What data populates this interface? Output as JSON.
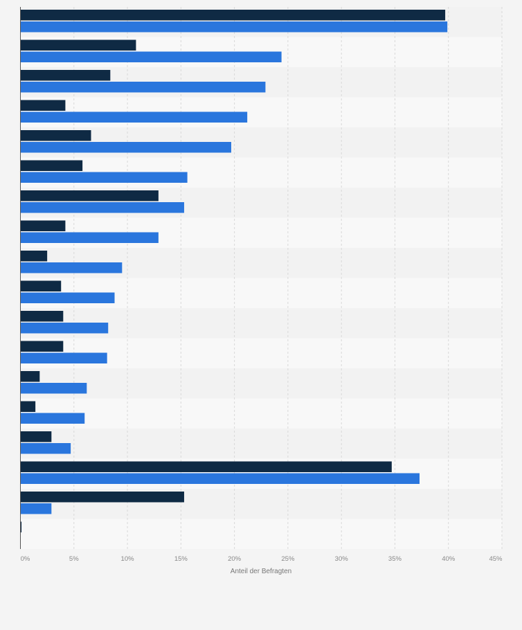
{
  "chart_data": {
    "type": "bar",
    "orientation": "horizontal",
    "title": "",
    "xlabel": "Anteil der Befragten",
    "ylabel": "",
    "xlim": [
      0,
      45
    ],
    "x_ticks": [
      "0%",
      "5%",
      "10%",
      "15%",
      "20%",
      "25%",
      "30%",
      "35%",
      "40%",
      "45%"
    ],
    "grid": true,
    "legend": "none",
    "categories": [
      "",
      "",
      "",
      "",
      "",
      "",
      "",
      "",
      "",
      "",
      "",
      "",
      "",
      "",
      "",
      "",
      "",
      ""
    ],
    "series": [
      {
        "color": "#0f2a44",
        "values": [
          39.7,
          10.8,
          8.4,
          4.2,
          6.6,
          5.8,
          12.9,
          4.2,
          2.5,
          3.8,
          4.0,
          4.0,
          1.8,
          1.4,
          2.9,
          34.7,
          15.3,
          0.1
        ]
      },
      {
        "color": "#2a76dd",
        "values": [
          39.9,
          24.4,
          22.9,
          21.2,
          19.7,
          15.6,
          15.3,
          12.9,
          9.5,
          8.8,
          8.2,
          8.1,
          6.2,
          6.0,
          4.7,
          37.3,
          2.9,
          0
        ]
      }
    ]
  }
}
